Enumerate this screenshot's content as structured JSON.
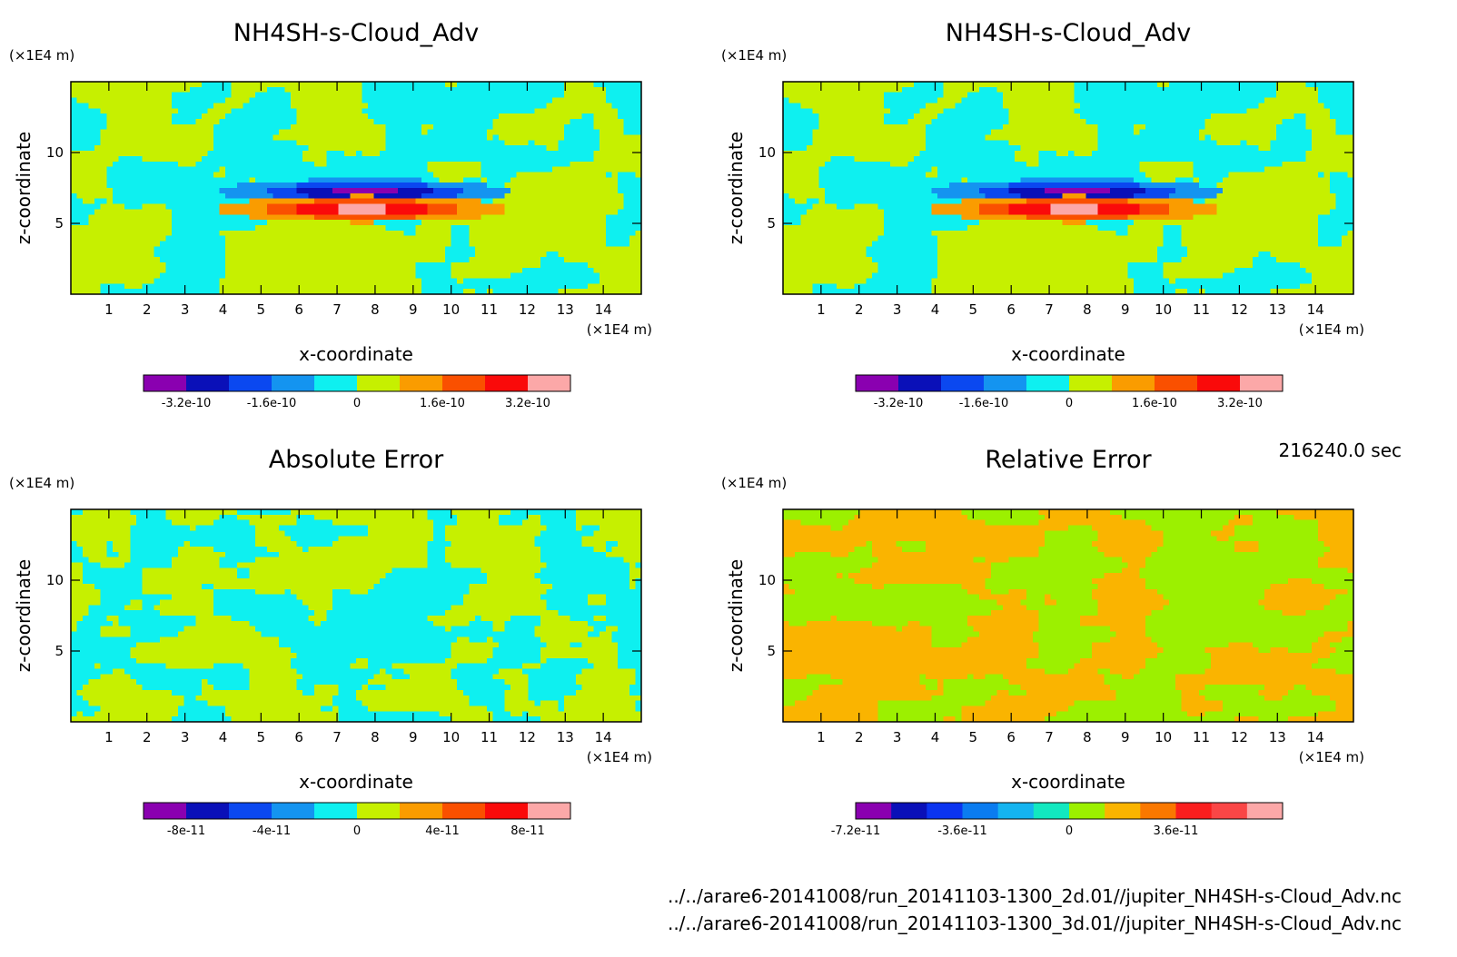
{
  "chart_data": [
    {
      "type": "heatmap",
      "id": "p1",
      "title": "NH4SH-s-Cloud_Adv",
      "xlabel": "x-coordinate",
      "ylabel": "z-coordinate",
      "x_unit": "(×1E4 m)",
      "y_unit": "(×1E4 m)",
      "xlim": [
        0,
        15
      ],
      "ylim": [
        0,
        15
      ],
      "x_ticks": [
        "1",
        "2",
        "3",
        "4",
        "5",
        "6",
        "7",
        "8",
        "9",
        "10",
        "11",
        "12",
        "13",
        "14"
      ],
      "y_ticks": [
        "5",
        "10"
      ],
      "pattern": "field",
      "colorbar": {
        "colors": [
          "#8a00b0",
          "#0a10b8",
          "#0b48f0",
          "#1494f0",
          "#0ef0f0",
          "#c6f000",
          "#fa9c00",
          "#fa5000",
          "#fa0a0a",
          "#fca8a8"
        ],
        "tick_labels": [
          "-3.2e-10",
          "-1.6e-10",
          "0",
          "1.6e-10",
          "3.2e-10"
        ]
      }
    },
    {
      "type": "heatmap",
      "id": "p2",
      "title": "NH4SH-s-Cloud_Adv",
      "xlabel": "x-coordinate",
      "ylabel": "z-coordinate",
      "x_unit": "(×1E4 m)",
      "y_unit": "(×1E4 m)",
      "xlim": [
        0,
        15
      ],
      "ylim": [
        0,
        15
      ],
      "x_ticks": [
        "1",
        "2",
        "3",
        "4",
        "5",
        "6",
        "7",
        "8",
        "9",
        "10",
        "11",
        "12",
        "13",
        "14"
      ],
      "y_ticks": [
        "5",
        "10"
      ],
      "pattern": "field",
      "colorbar": {
        "colors": [
          "#8a00b0",
          "#0a10b8",
          "#0b48f0",
          "#1494f0",
          "#0ef0f0",
          "#c6f000",
          "#fa9c00",
          "#fa5000",
          "#fa0a0a",
          "#fca8a8"
        ],
        "tick_labels": [
          "-3.2e-10",
          "-1.6e-10",
          "0",
          "1.6e-10",
          "3.2e-10"
        ]
      }
    },
    {
      "type": "heatmap",
      "id": "p3",
      "title": "Absolute Error",
      "xlabel": "x-coordinate",
      "ylabel": "z-coordinate",
      "x_unit": "(×1E4 m)",
      "y_unit": "(×1E4 m)",
      "xlim": [
        0,
        15
      ],
      "ylim": [
        0,
        15
      ],
      "x_ticks": [
        "1",
        "2",
        "3",
        "4",
        "5",
        "6",
        "7",
        "8",
        "9",
        "10",
        "11",
        "12",
        "13",
        "14"
      ],
      "y_ticks": [
        "5",
        "10"
      ],
      "pattern": "abs_error",
      "colorbar": {
        "colors": [
          "#8a00b0",
          "#0a10b8",
          "#0b48f0",
          "#1494f0",
          "#0ef0f0",
          "#c6f000",
          "#fa9c00",
          "#fa5000",
          "#fa0a0a",
          "#fca8a8"
        ],
        "tick_labels": [
          "-8e-11",
          "-4e-11",
          "0",
          "4e-11",
          "8e-11"
        ]
      }
    },
    {
      "type": "heatmap",
      "id": "p4",
      "title": "Relative Error",
      "xlabel": "x-coordinate",
      "ylabel": "z-coordinate",
      "x_unit": "(×1E4 m)",
      "y_unit": "(×1E4 m)",
      "xlim": [
        0,
        15
      ],
      "ylim": [
        0,
        15
      ],
      "x_ticks": [
        "1",
        "2",
        "3",
        "4",
        "5",
        "6",
        "7",
        "8",
        "9",
        "10",
        "11",
        "12",
        "13",
        "14"
      ],
      "y_ticks": [
        "5",
        "10"
      ],
      "pattern": "rel_error",
      "colorbar": {
        "colors": [
          "#8a00b0",
          "#0a10b8",
          "#0b34f0",
          "#0a7cf0",
          "#14b4f0",
          "#12e8c0",
          "#9cf000",
          "#fab400",
          "#fa7800",
          "#fa1e1e",
          "#fa4646",
          "#fca8a8"
        ],
        "tick_labels": [
          "-7.2e-11",
          "-3.6e-11",
          "0",
          "3.6e-11"
        ]
      }
    }
  ],
  "time_label": "216240.0 sec",
  "footer": {
    "line1": "../../arare6-20141008/run_20141103-1300_2d.01//jupiter_NH4SH-s-Cloud_Adv.nc",
    "line2": "../../arare6-20141008/run_20141103-1300_3d.01//jupiter_NH4SH-s-Cloud_Adv.nc"
  }
}
